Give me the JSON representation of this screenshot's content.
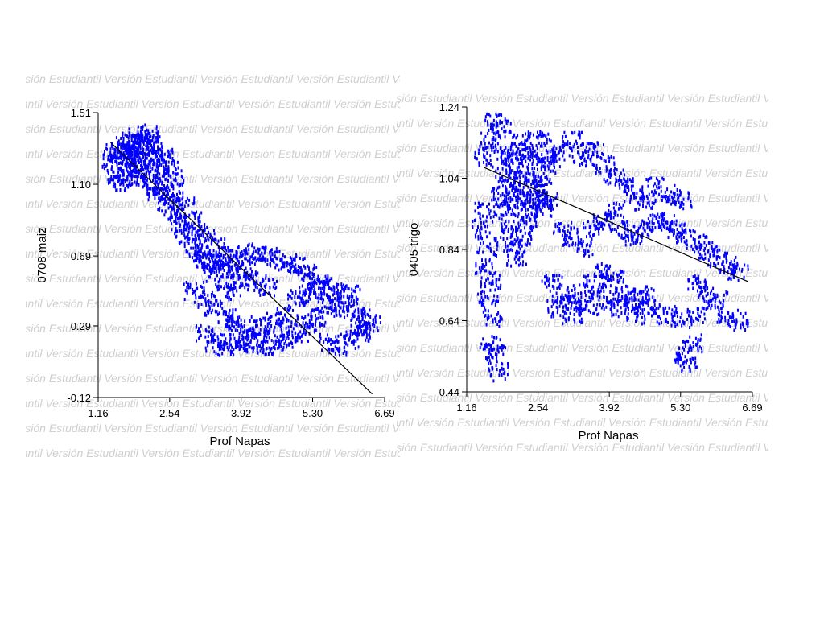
{
  "watermark": {
    "text": "Versión Estudiantil"
  },
  "colors": {
    "points": "#0000ff",
    "fit_line": "#000000",
    "axis": "#000000",
    "watermark": "#cfcfcf",
    "background": "#ffffff"
  },
  "chart_data": [
    {
      "type": "scatter",
      "title": "",
      "xlabel": "Prof Napas",
      "ylabel": "0708 maiz",
      "xlim": [
        1.16,
        6.69
      ],
      "ylim": [
        -0.12,
        1.51
      ],
      "x_ticks": [
        "1.16",
        "2.54",
        "3.92",
        "5.30",
        "6.69"
      ],
      "y_ticks": [
        "-0.12",
        "0.29",
        "0.69",
        "1.10",
        "1.51"
      ],
      "grid": false,
      "series": [
        {
          "marker_color": "#0000ff",
          "points": [
            [
              1.4,
              1.25
            ],
            [
              1.5,
              1.3
            ],
            [
              1.6,
              1.22
            ],
            [
              1.7,
              1.28
            ],
            [
              1.8,
              1.3
            ],
            [
              1.9,
              1.25
            ],
            [
              2.0,
              1.2
            ],
            [
              2.1,
              1.18
            ],
            [
              2.2,
              1.1
            ],
            [
              2.3,
              1.05
            ],
            [
              1.5,
              1.15
            ],
            [
              1.6,
              1.12
            ],
            [
              1.7,
              1.18
            ],
            [
              1.8,
              1.2
            ],
            [
              1.9,
              1.15
            ],
            [
              2.0,
              1.3
            ],
            [
              2.1,
              1.32
            ],
            [
              2.2,
              1.25
            ],
            [
              2.3,
              1.2
            ],
            [
              2.4,
              1.1
            ],
            [
              2.5,
              1.0
            ],
            [
              2.6,
              0.95
            ],
            [
              2.7,
              0.9
            ],
            [
              2.8,
              0.85
            ],
            [
              2.9,
              0.8
            ],
            [
              3.0,
              0.75
            ],
            [
              3.1,
              0.7
            ],
            [
              3.2,
              0.68
            ],
            [
              3.3,
              0.65
            ],
            [
              3.4,
              0.6
            ],
            [
              2.6,
              1.05
            ],
            [
              2.8,
              0.98
            ],
            [
              3.0,
              0.9
            ],
            [
              3.2,
              0.82
            ],
            [
              3.4,
              0.75
            ],
            [
              3.6,
              0.7
            ],
            [
              3.8,
              0.62
            ],
            [
              4.0,
              0.58
            ],
            [
              4.2,
              0.55
            ],
            [
              4.4,
              0.52
            ],
            [
              3.5,
              0.66
            ],
            [
              3.8,
              0.68
            ],
            [
              4.0,
              0.7
            ],
            [
              4.2,
              0.72
            ],
            [
              4.4,
              0.7
            ],
            [
              4.6,
              0.68
            ],
            [
              4.8,
              0.66
            ],
            [
              5.0,
              0.64
            ],
            [
              5.2,
              0.6
            ],
            [
              5.4,
              0.55
            ],
            [
              3.0,
              0.5
            ],
            [
              3.2,
              0.45
            ],
            [
              3.4,
              0.4
            ],
            [
              3.6,
              0.35
            ],
            [
              3.8,
              0.32
            ],
            [
              4.0,
              0.3
            ],
            [
              4.2,
              0.28
            ],
            [
              4.4,
              0.3
            ],
            [
              4.6,
              0.32
            ],
            [
              4.8,
              0.35
            ],
            [
              3.2,
              0.25
            ],
            [
              3.4,
              0.2
            ],
            [
              3.6,
              0.18
            ],
            [
              3.8,
              0.2
            ],
            [
              4.0,
              0.22
            ],
            [
              4.2,
              0.2
            ],
            [
              4.4,
              0.18
            ],
            [
              4.6,
              0.2
            ],
            [
              4.8,
              0.22
            ],
            [
              5.0,
              0.25
            ],
            [
              5.2,
              0.3
            ],
            [
              5.4,
              0.35
            ],
            [
              5.6,
              0.4
            ],
            [
              5.8,
              0.42
            ],
            [
              6.0,
              0.38
            ],
            [
              6.2,
              0.35
            ],
            [
              6.3,
              0.3
            ],
            [
              6.4,
              0.32
            ],
            [
              5.6,
              0.2
            ],
            [
              5.8,
              0.18
            ],
            [
              6.0,
              0.22
            ],
            [
              6.2,
              0.25
            ],
            [
              5.0,
              0.45
            ],
            [
              5.2,
              0.48
            ],
            [
              5.4,
              0.5
            ],
            [
              5.6,
              0.52
            ],
            [
              5.8,
              0.5
            ],
            [
              6.0,
              0.48
            ],
            [
              3.6,
              0.55
            ],
            [
              3.8,
              0.5
            ],
            [
              2.0,
              1.35
            ],
            [
              2.1,
              1.4
            ],
            [
              1.9,
              1.38
            ],
            [
              2.2,
              1.34
            ],
            [
              1.8,
              1.36
            ],
            [
              1.6,
              1.3
            ],
            [
              1.7,
              1.34
            ],
            [
              2.4,
              1.26
            ],
            [
              2.5,
              1.2
            ],
            [
              2.6,
              1.15
            ]
          ]
        }
      ],
      "fit_line": [
        [
          1.4,
          1.34
        ],
        [
          6.45,
          -0.1
        ]
      ]
    },
    {
      "type": "scatter",
      "title": "",
      "xlabel": "Prof Napas",
      "ylabel": "0405 trigo",
      "xlim": [
        1.16,
        6.69
      ],
      "ylim": [
        0.44,
        1.24
      ],
      "x_ticks": [
        "1.16",
        "2.54",
        "3.92",
        "5.30",
        "6.69"
      ],
      "y_ticks": [
        "0.44",
        "0.64",
        "0.84",
        "1.04",
        "1.24"
      ],
      "grid": false,
      "series": [
        {
          "marker_color": "#0000ff",
          "points": [
            [
              1.5,
              1.1
            ],
            [
              1.6,
              1.15
            ],
            [
              1.7,
              1.2
            ],
            [
              1.8,
              1.18
            ],
            [
              1.9,
              1.12
            ],
            [
              2.0,
              1.1
            ],
            [
              2.1,
              1.08
            ],
            [
              2.2,
              1.15
            ],
            [
              2.3,
              1.12
            ],
            [
              2.4,
              1.1
            ],
            [
              1.5,
              0.95
            ],
            [
              1.55,
              0.85
            ],
            [
              1.6,
              0.75
            ],
            [
              1.65,
              0.65
            ],
            [
              1.7,
              0.55
            ],
            [
              1.75,
              0.5
            ],
            [
              1.6,
              0.58
            ],
            [
              1.55,
              0.7
            ],
            [
              1.5,
              0.8
            ],
            [
              1.45,
              0.9
            ],
            [
              1.9,
              0.95
            ],
            [
              2.0,
              0.9
            ],
            [
              2.05,
              0.85
            ],
            [
              2.1,
              0.82
            ],
            [
              2.2,
              0.88
            ],
            [
              2.3,
              0.92
            ],
            [
              2.4,
              0.95
            ],
            [
              2.5,
              1.0
            ],
            [
              2.6,
              1.05
            ],
            [
              2.7,
              1.08
            ],
            [
              2.8,
              1.1
            ],
            [
              3.0,
              1.12
            ],
            [
              3.2,
              1.15
            ],
            [
              3.4,
              1.1
            ],
            [
              3.6,
              1.12
            ],
            [
              3.8,
              1.08
            ],
            [
              4.0,
              1.05
            ],
            [
              4.2,
              1.02
            ],
            [
              4.4,
              1.0
            ],
            [
              4.6,
              0.98
            ],
            [
              3.0,
              0.9
            ],
            [
              3.2,
              0.88
            ],
            [
              3.4,
              0.85
            ],
            [
              3.6,
              0.9
            ],
            [
              3.8,
              0.92
            ],
            [
              4.0,
              0.95
            ],
            [
              4.2,
              0.9
            ],
            [
              4.4,
              0.88
            ],
            [
              4.6,
              0.9
            ],
            [
              4.8,
              0.92
            ],
            [
              2.8,
              0.75
            ],
            [
              3.0,
              0.72
            ],
            [
              3.2,
              0.7
            ],
            [
              3.4,
              0.72
            ],
            [
              3.6,
              0.75
            ],
            [
              3.8,
              0.78
            ],
            [
              4.0,
              0.76
            ],
            [
              4.2,
              0.72
            ],
            [
              4.4,
              0.7
            ],
            [
              4.6,
              0.72
            ],
            [
              2.9,
              0.68
            ],
            [
              3.2,
              0.66
            ],
            [
              3.5,
              0.68
            ],
            [
              3.8,
              0.7
            ],
            [
              4.1,
              0.68
            ],
            [
              4.4,
              0.66
            ],
            [
              4.7,
              0.68
            ],
            [
              5.0,
              0.66
            ],
            [
              5.3,
              0.65
            ],
            [
              5.6,
              0.66
            ],
            [
              5.0,
              0.92
            ],
            [
              5.2,
              0.9
            ],
            [
              5.4,
              0.88
            ],
            [
              5.6,
              0.86
            ],
            [
              5.8,
              0.84
            ],
            [
              6.0,
              0.82
            ],
            [
              6.2,
              0.8
            ],
            [
              6.4,
              0.78
            ],
            [
              5.6,
              0.75
            ],
            [
              5.8,
              0.72
            ],
            [
              6.0,
              0.7
            ],
            [
              6.2,
              0.66
            ],
            [
              6.4,
              0.64
            ],
            [
              5.3,
              0.55
            ],
            [
              5.4,
              0.52
            ],
            [
              5.5,
              0.58
            ],
            [
              5.1,
              1.0
            ],
            [
              5.3,
              0.98
            ],
            [
              4.8,
              1.02
            ],
            [
              2.6,
              1.15
            ],
            [
              1.8,
              1.0
            ],
            [
              1.9,
              1.05
            ],
            [
              2.0,
              1.02
            ],
            [
              2.1,
              0.98
            ],
            [
              2.2,
              1.0
            ],
            [
              2.3,
              1.05
            ],
            [
              2.4,
              1.02
            ],
            [
              2.5,
              0.98
            ],
            [
              2.6,
              0.96
            ],
            [
              2.7,
              0.98
            ]
          ]
        }
      ],
      "fit_line": [
        [
          1.5,
          1.07
        ],
        [
          6.6,
          0.75
        ]
      ]
    }
  ]
}
